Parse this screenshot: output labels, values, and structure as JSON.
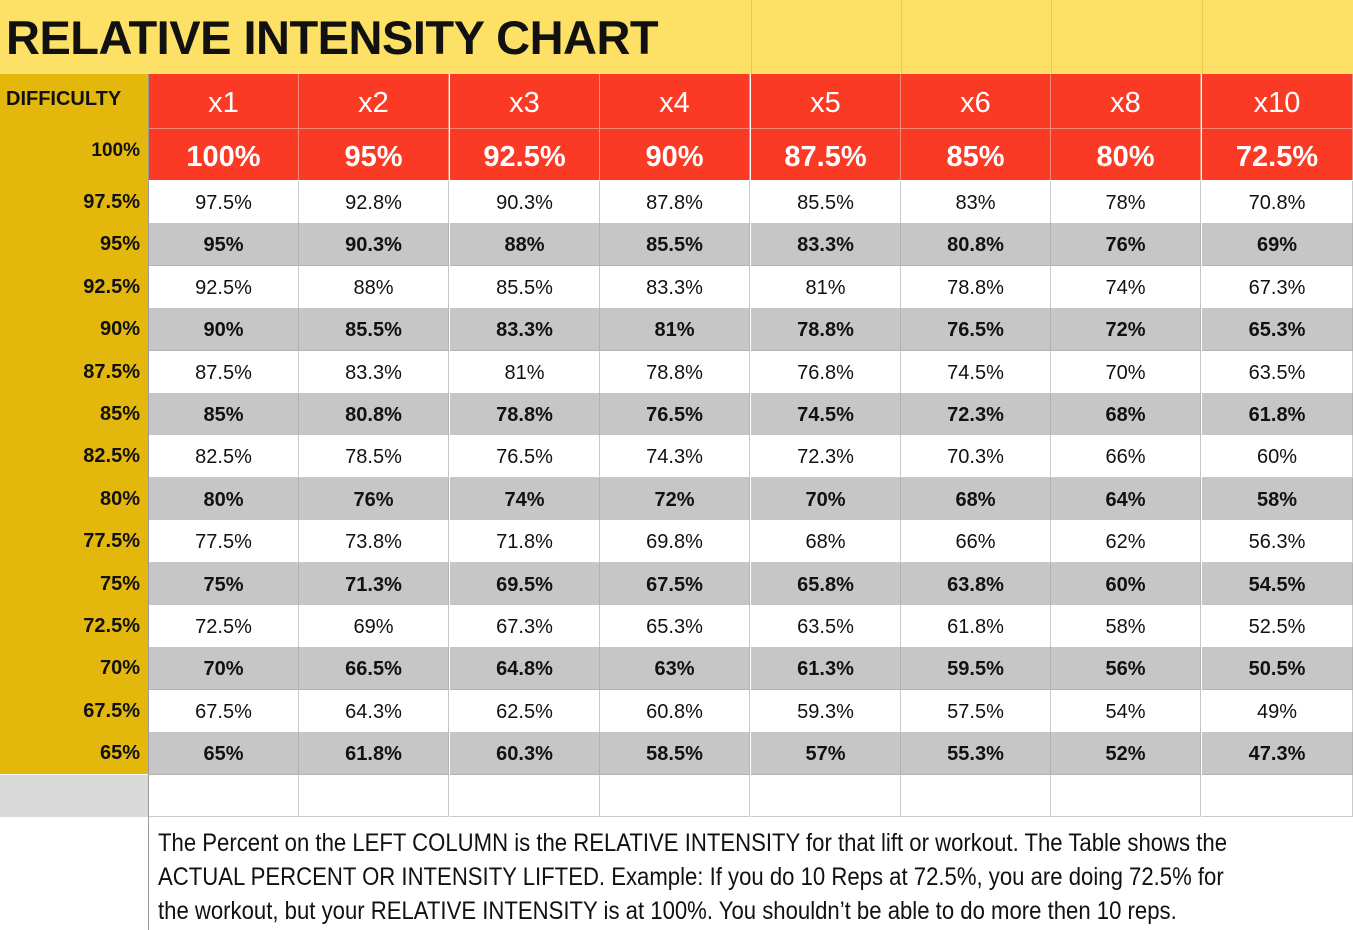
{
  "title": "RELATIVE INTENSITY CHART",
  "difficulty_label": "DIFFICULTY",
  "columns": [
    "x1",
    "x2",
    "x3",
    "x4",
    "x5",
    "x6",
    "x8",
    "x10"
  ],
  "top_row": {
    "label": "100%",
    "values": [
      "100%",
      "95%",
      "92.5%",
      "90%",
      "87.5%",
      "85%",
      "80%",
      "72.5%"
    ]
  },
  "rows": [
    {
      "label": "97.5%",
      "values": [
        "97.5%",
        "92.8%",
        "90.3%",
        "87.8%",
        "85.5%",
        "83%",
        "78%",
        "70.8%"
      ]
    },
    {
      "label": "95%",
      "values": [
        "95%",
        "90.3%",
        "88%",
        "85.5%",
        "83.3%",
        "80.8%",
        "76%",
        "69%"
      ]
    },
    {
      "label": "92.5%",
      "values": [
        "92.5%",
        "88%",
        "85.5%",
        "83.3%",
        "81%",
        "78.8%",
        "74%",
        "67.3%"
      ]
    },
    {
      "label": "90%",
      "values": [
        "90%",
        "85.5%",
        "83.3%",
        "81%",
        "78.8%",
        "76.5%",
        "72%",
        "65.3%"
      ]
    },
    {
      "label": "87.5%",
      "values": [
        "87.5%",
        "83.3%",
        "81%",
        "78.8%",
        "76.8%",
        "74.5%",
        "70%",
        "63.5%"
      ]
    },
    {
      "label": "85%",
      "values": [
        "85%",
        "80.8%",
        "78.8%",
        "76.5%",
        "74.5%",
        "72.3%",
        "68%",
        "61.8%"
      ]
    },
    {
      "label": "82.5%",
      "values": [
        "82.5%",
        "78.5%",
        "76.5%",
        "74.3%",
        "72.3%",
        "70.3%",
        "66%",
        "60%"
      ]
    },
    {
      "label": "80%",
      "values": [
        "80%",
        "76%",
        "74%",
        "72%",
        "70%",
        "68%",
        "64%",
        "58%"
      ]
    },
    {
      "label": "77.5%",
      "values": [
        "77.5%",
        "73.8%",
        "71.8%",
        "69.8%",
        "68%",
        "66%",
        "62%",
        "56.3%"
      ]
    },
    {
      "label": "75%",
      "values": [
        "75%",
        "71.3%",
        "69.5%",
        "67.5%",
        "65.8%",
        "63.8%",
        "60%",
        "54.5%"
      ]
    },
    {
      "label": "72.5%",
      "values": [
        "72.5%",
        "69%",
        "67.3%",
        "65.3%",
        "63.5%",
        "61.8%",
        "58%",
        "52.5%"
      ]
    },
    {
      "label": "70%",
      "values": [
        "70%",
        "66.5%",
        "64.8%",
        "63%",
        "61.3%",
        "59.5%",
        "56%",
        "50.5%"
      ]
    },
    {
      "label": "67.5%",
      "values": [
        "67.5%",
        "64.3%",
        "62.5%",
        "60.8%",
        "59.3%",
        "57.5%",
        "54%",
        "49%"
      ]
    },
    {
      "label": "65%",
      "values": [
        "65%",
        "61.8%",
        "60.3%",
        "58.5%",
        "57%",
        "55.3%",
        "52%",
        "47.3%"
      ]
    }
  ],
  "note_lines": [
    "The Percent on the LEFT COLUMN is the RELATIVE INTENSITY for that lift or workout.   The Table shows the",
    "ACTUAL PERCENT OR INTENSITY LIFTED.  Example:  If you do 10 Reps at 72.5%, you are doing 72.5% for",
    "the workout, but your RELATIVE INTENSITY is at 100%.  You shouldn’t be able to do more then 10 reps."
  ],
  "colors": {
    "title_band": "#fde166",
    "difficulty_column": "#e3b70c",
    "header_red": "#fb3a26",
    "alt_row_gray": "#c6c6c6"
  }
}
